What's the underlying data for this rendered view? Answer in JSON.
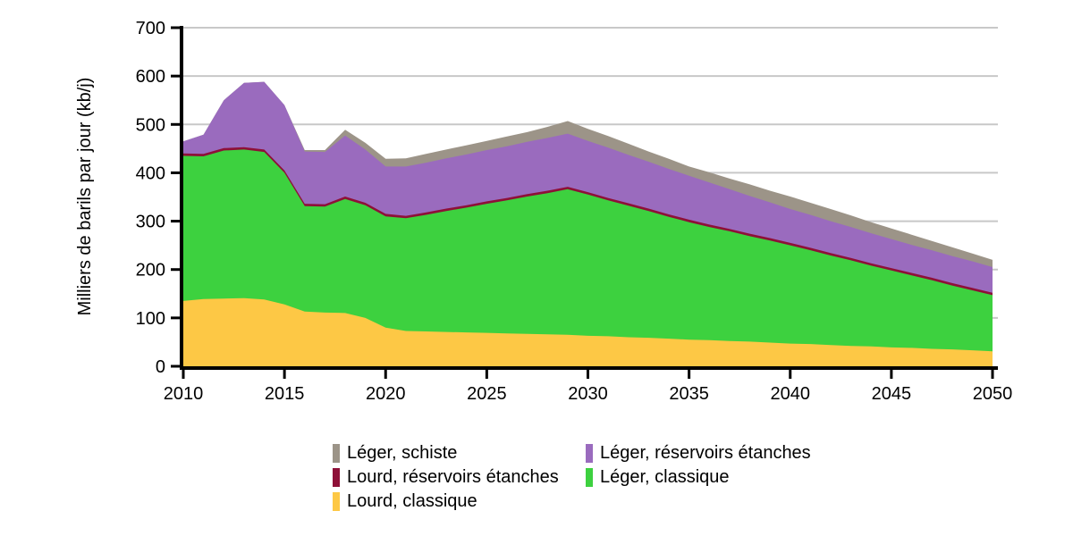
{
  "figure": {
    "background": "#ffffff"
  },
  "chart_data": {
    "type": "area",
    "stacked": true,
    "title": "",
    "xlabel": "",
    "ylabel": "Milliers de barils par jour (kb/j)",
    "xlim": [
      2010,
      2050
    ],
    "ylim": [
      0,
      700
    ],
    "x_ticks": [
      2010,
      2015,
      2020,
      2025,
      2030,
      2035,
      2040,
      2045,
      2050
    ],
    "y_ticks": [
      0,
      100,
      200,
      300,
      400,
      500,
      600,
      700
    ],
    "grid": "horizontal",
    "gridline_color": "#C8C8C8",
    "axis_color": "#000000",
    "x": [
      2010,
      2011,
      2012,
      2013,
      2014,
      2015,
      2016,
      2017,
      2018,
      2019,
      2020,
      2021,
      2022,
      2023,
      2024,
      2025,
      2026,
      2027,
      2028,
      2029,
      2030,
      2031,
      2032,
      2033,
      2034,
      2035,
      2036,
      2037,
      2038,
      2039,
      2040,
      2041,
      2042,
      2043,
      2044,
      2045,
      2046,
      2047,
      2048,
      2049,
      2050
    ],
    "series": [
      {
        "key": "lourd_classique",
        "label": "Lourd, classique",
        "color": "#FDC845",
        "values": [
          135,
          139,
          140,
          141,
          138,
          128,
          113,
          111,
          110,
          100,
          80,
          73,
          72,
          71,
          70,
          69,
          68,
          67,
          66,
          65,
          63,
          62,
          60,
          59,
          57,
          55,
          54,
          52,
          51,
          49,
          47,
          46,
          44,
          42,
          41,
          39,
          38,
          36,
          35,
          33,
          31
        ]
      },
      {
        "key": "leger_classique",
        "label": "Léger, classique",
        "color": "#3DD13F",
        "values": [
          300,
          295,
          306,
          307,
          305,
          272,
          218,
          219,
          236,
          233,
          230,
          233,
          241,
          250,
          258,
          267,
          275,
          284,
          292,
          301,
          292,
          281,
          272,
          262,
          252,
          243,
          234,
          227,
          218,
          211,
          203,
          194,
          185,
          177,
          167,
          159,
          150,
          142,
          132,
          124,
          116
        ]
      },
      {
        "key": "lourd_reservoirs_etanches",
        "label": "Lourd, réservoirs étanches",
        "color": "#8E1038",
        "values": [
          5,
          5,
          5,
          5,
          5,
          5,
          5,
          5,
          5,
          5,
          5,
          5,
          5,
          5,
          5,
          5,
          5,
          5,
          5,
          5,
          5,
          5,
          5,
          5,
          5,
          5,
          5,
          5,
          5,
          5,
          5,
          5,
          5,
          5,
          5,
          5,
          5,
          5,
          5,
          5,
          5
        ]
      },
      {
        "key": "leger_reservoirs_etanches",
        "label": "Léger, réservoirs étanches",
        "color": "#9A6BBE",
        "values": [
          25,
          40,
          99,
          133,
          140,
          135,
          108,
          108,
          126,
          110,
          98,
          102,
          103,
          104,
          105,
          106,
          107,
          108,
          109,
          110,
          106,
          104,
          100,
          97,
          94,
          91,
          87,
          82,
          78,
          74,
          70,
          68,
          66,
          64,
          62,
          60,
          58,
          57,
          56,
          55,
          53
        ]
      },
      {
        "key": "leger_schiste",
        "label": "Léger, schiste",
        "color": "#9C9488",
        "values": [
          0,
          0,
          0,
          0,
          0,
          0,
          3,
          4,
          12,
          14,
          16,
          17,
          18,
          18,
          19,
          19,
          20,
          20,
          23,
          26,
          25,
          24,
          23,
          21,
          21,
          19,
          21,
          22,
          24,
          24,
          26,
          25,
          25,
          24,
          23,
          22,
          21,
          19,
          18,
          16,
          15
        ]
      }
    ],
    "legend_columns": [
      [
        "leger_schiste",
        "lourd_reservoirs_etanches",
        "lourd_classique"
      ],
      [
        "leger_reservoirs_etanches",
        "leger_classique"
      ]
    ],
    "legend_position": "bottom-center"
  }
}
